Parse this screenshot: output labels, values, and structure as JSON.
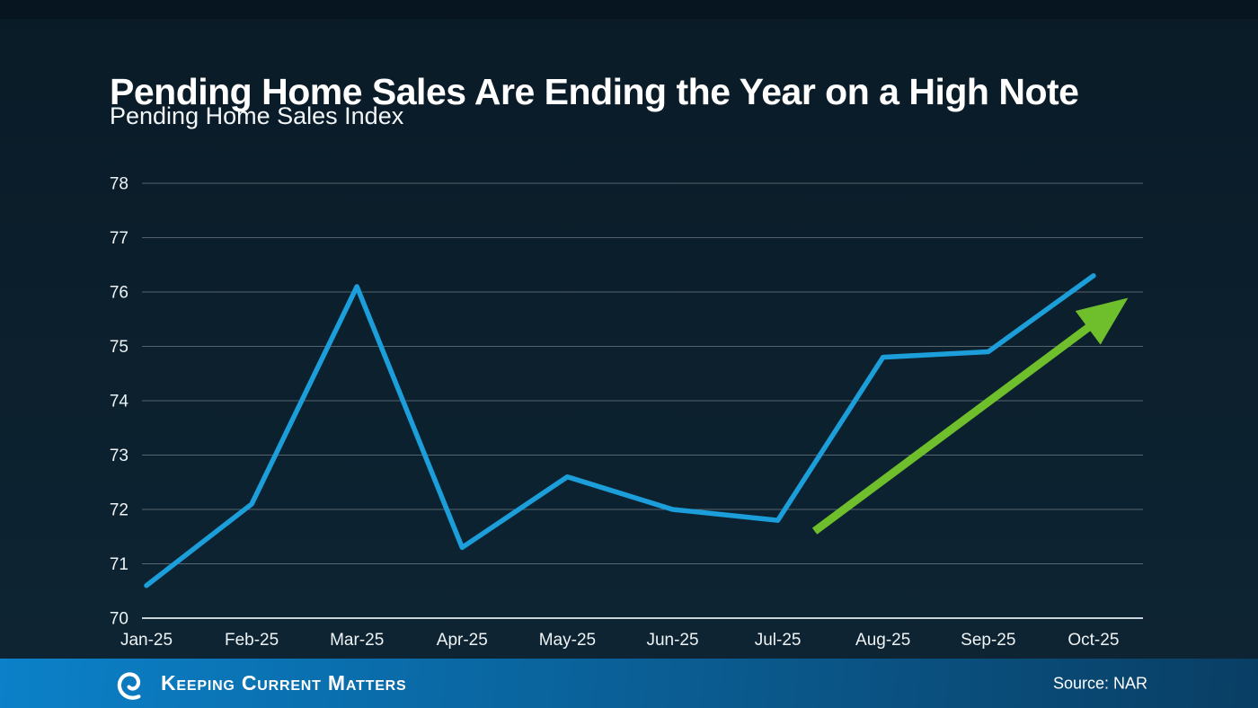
{
  "header": {
    "title": "Pending Home Sales Are Ending the Year on a High Note",
    "subtitle": "Pending Home Sales Index"
  },
  "chart_data": {
    "type": "line",
    "title": "Pending Home Sales Index",
    "categories": [
      "Jan-25",
      "Feb-25",
      "Mar-25",
      "Apr-25",
      "May-25",
      "Jun-25",
      "Jul-25",
      "Aug-25",
      "Sep-25",
      "Oct-25"
    ],
    "series": [
      {
        "name": "Pending Home Sales Index",
        "color": "#1b9ed9",
        "values": [
          70.6,
          72.1,
          76.1,
          71.3,
          72.6,
          72.0,
          71.8,
          74.8,
          74.9,
          76.3
        ]
      }
    ],
    "ylim": [
      70,
      78
    ],
    "yticks": [
      70,
      71,
      72,
      73,
      74,
      75,
      76,
      77,
      78
    ],
    "grid": true,
    "legend": "none",
    "annotation_arrow": {
      "color": "#6fbf2c",
      "from": {
        "x_index": 6.35,
        "value": 71.6
      },
      "to": {
        "x_index": 9.3,
        "value": 75.85
      }
    }
  },
  "footer": {
    "brand": "Keeping Current Matters",
    "source": "Source: NAR",
    "bar_color_left": "#0b81c9",
    "bar_color_right": "#093e64"
  },
  "colors": {
    "background_top_band": "#071521",
    "background": "#0b1e2b",
    "gridline": "rgba(255,255,255,0.30)",
    "axis_line": "#c9d2d8",
    "text": "#eef3f5",
    "title_text": "#ffffff"
  }
}
